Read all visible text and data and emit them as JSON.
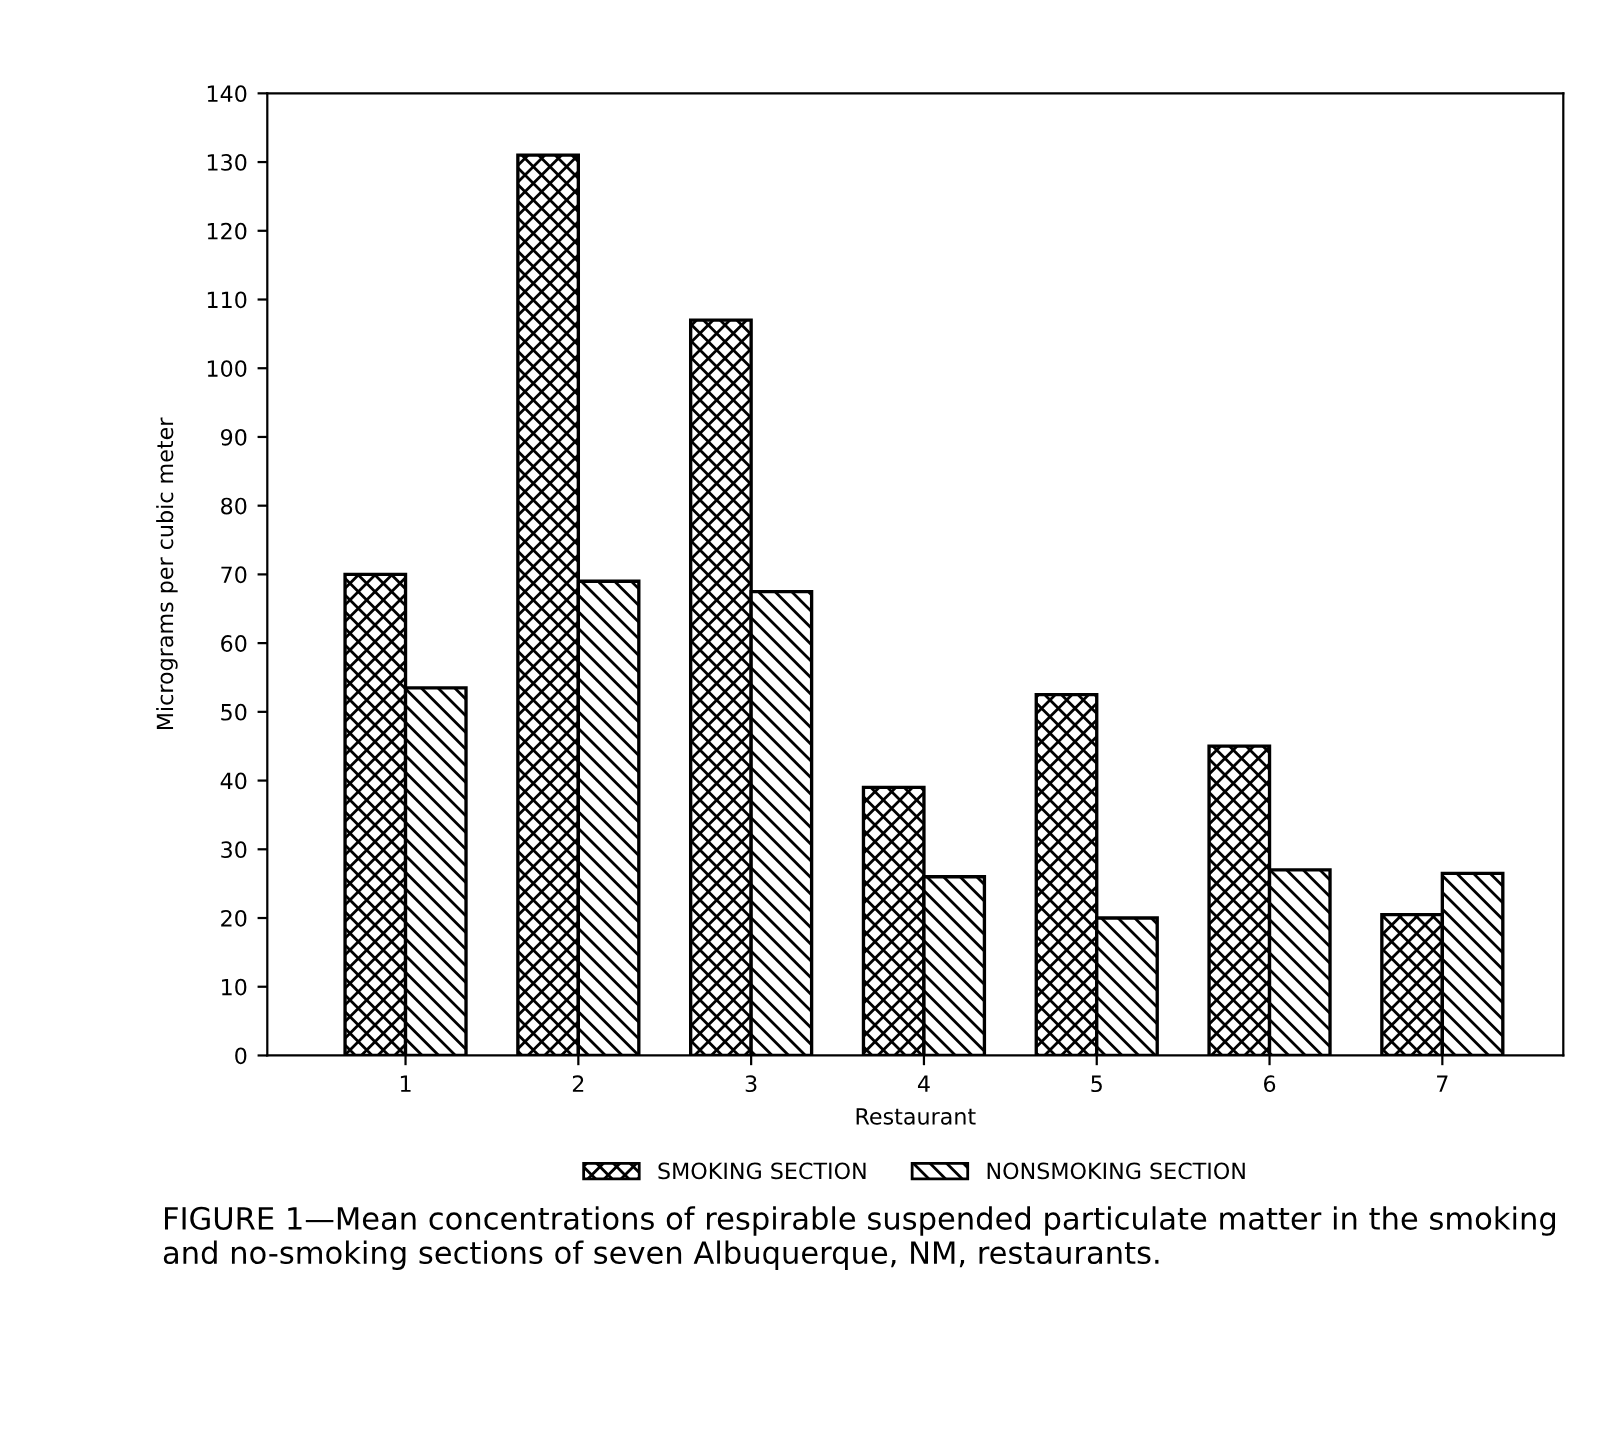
{
  "chart_data": {
    "type": "bar",
    "categories": [
      "1",
      "2",
      "3",
      "4",
      "5",
      "6",
      "7"
    ],
    "series": [
      {
        "name": "SMOKING SECTION",
        "color": "#000000",
        "values": [
          70,
          131,
          107,
          39,
          52.5,
          45,
          20.5
        ]
      },
      {
        "name": "NONSMOKING SECTION",
        "color": "#000000",
        "values": [
          53.5,
          69,
          67.5,
          26,
          20,
          27,
          26.5
        ]
      }
    ],
    "xlabel": "Restaurant",
    "ylabel": "Micrograms per cubic meter",
    "ylim": [
      0,
      140
    ],
    "yticks": [
      0,
      10,
      20,
      30,
      40,
      50,
      60,
      70,
      80,
      90,
      100,
      110,
      120,
      130,
      140
    ],
    "legend": "bottom",
    "grid": false,
    "annotations": [
      "FIGURE 1—Mean concentrations of respirable suspended particulate matter in the smoking and no-smoking sections of seven Albuquerque, NM, restaurants."
    ]
  }
}
